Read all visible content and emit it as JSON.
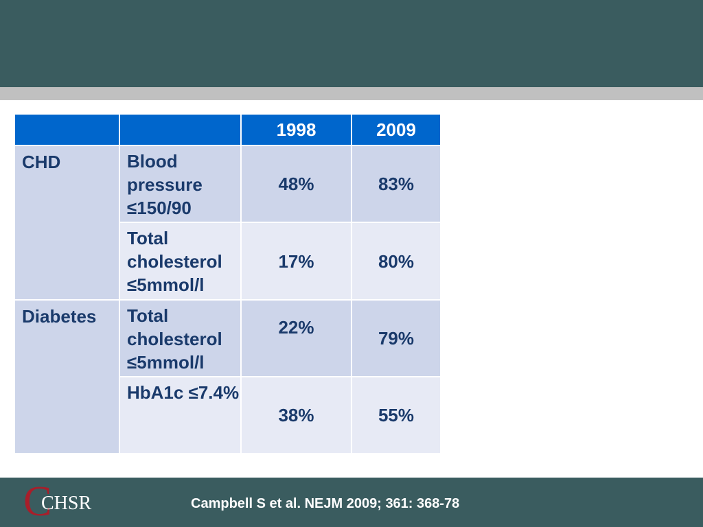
{
  "table": {
    "headers": [
      "",
      "",
      "1998",
      "2009"
    ],
    "groups": [
      {
        "label": "CHD",
        "rows": [
          {
            "measure": "Blood pressure ≤150/90",
            "v1998": "48%",
            "v2009": "83%"
          },
          {
            "measure": "Total cholesterol ≤5mmol/l",
            "v1998": "17%",
            "v2009": "80%"
          }
        ]
      },
      {
        "label": "Diabetes",
        "rows": [
          {
            "measure": "Total cholesterol ≤5mmol/l",
            "v1998": "22%",
            "v2009": "79%"
          },
          {
            "measure": "HbA1c ≤7.4%",
            "v1998": "38%",
            "v2009": "55%"
          }
        ]
      }
    ]
  },
  "footer": {
    "logo_letter": "C",
    "logo_text": "CHSR",
    "citation": "Campbell S et al. NEJM 2009; 361: 368-78"
  },
  "colors": {
    "bar": "#3a5c5f",
    "stripe": "#c0c0c0",
    "header": "#0066cc",
    "row_dark": "#cdd5ea",
    "row_light": "#e7eaf5",
    "text": "#1a3a6b",
    "logo_red": "#a81e2a"
  }
}
